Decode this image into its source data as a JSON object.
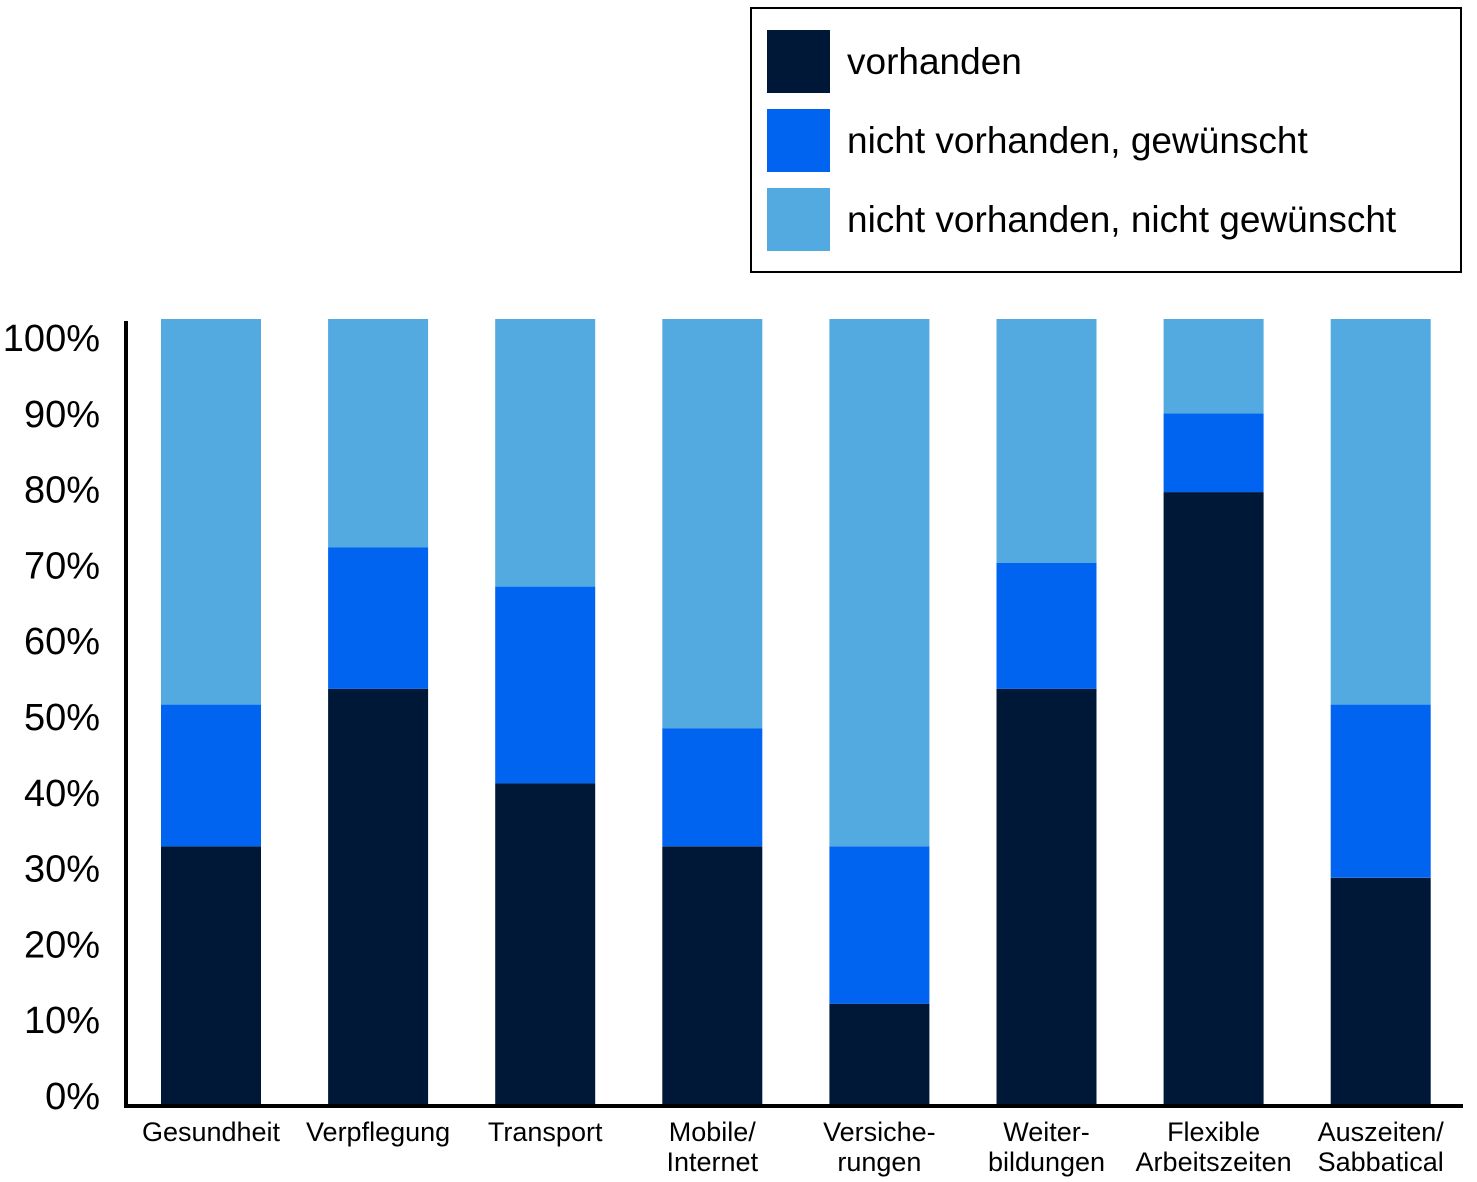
{
  "chart_data": {
    "type": "bar",
    "stacked": true,
    "title": "",
    "xlabel": "",
    "ylabel": "",
    "ylim": [
      0,
      100
    ],
    "y_ticks": [
      "0%",
      "10%",
      "20%",
      "30%",
      "40%",
      "50%",
      "60%",
      "70%",
      "80%",
      "90%",
      "100%"
    ],
    "grid": false,
    "legend_position": "top-right",
    "categories": [
      [
        "Gesundheit"
      ],
      [
        "Verpflegung"
      ],
      [
        "Transport"
      ],
      [
        "Mobile/",
        "Internet"
      ],
      [
        "Versiche-",
        "rungen"
      ],
      [
        "Weiter-",
        "bildungen"
      ],
      [
        "Flexible",
        "Arbeitszeiten"
      ],
      [
        "Auszeiten/",
        "Sabbatical"
      ]
    ],
    "series": [
      {
        "name": "vorhanden",
        "color": "#001837",
        "values": [
          33,
          53,
          41,
          33,
          13,
          53,
          78,
          29
        ]
      },
      {
        "name": "nicht vorhanden, gewünscht",
        "color": "#0064F0",
        "values": [
          18,
          18,
          25,
          15,
          20,
          16,
          10,
          22
        ]
      },
      {
        "name": "nicht vorhanden, nicht gewünscht",
        "color": "#52AAE0",
        "values": [
          52,
          32,
          37,
          55,
          70,
          34,
          15,
          52
        ]
      }
    ]
  }
}
